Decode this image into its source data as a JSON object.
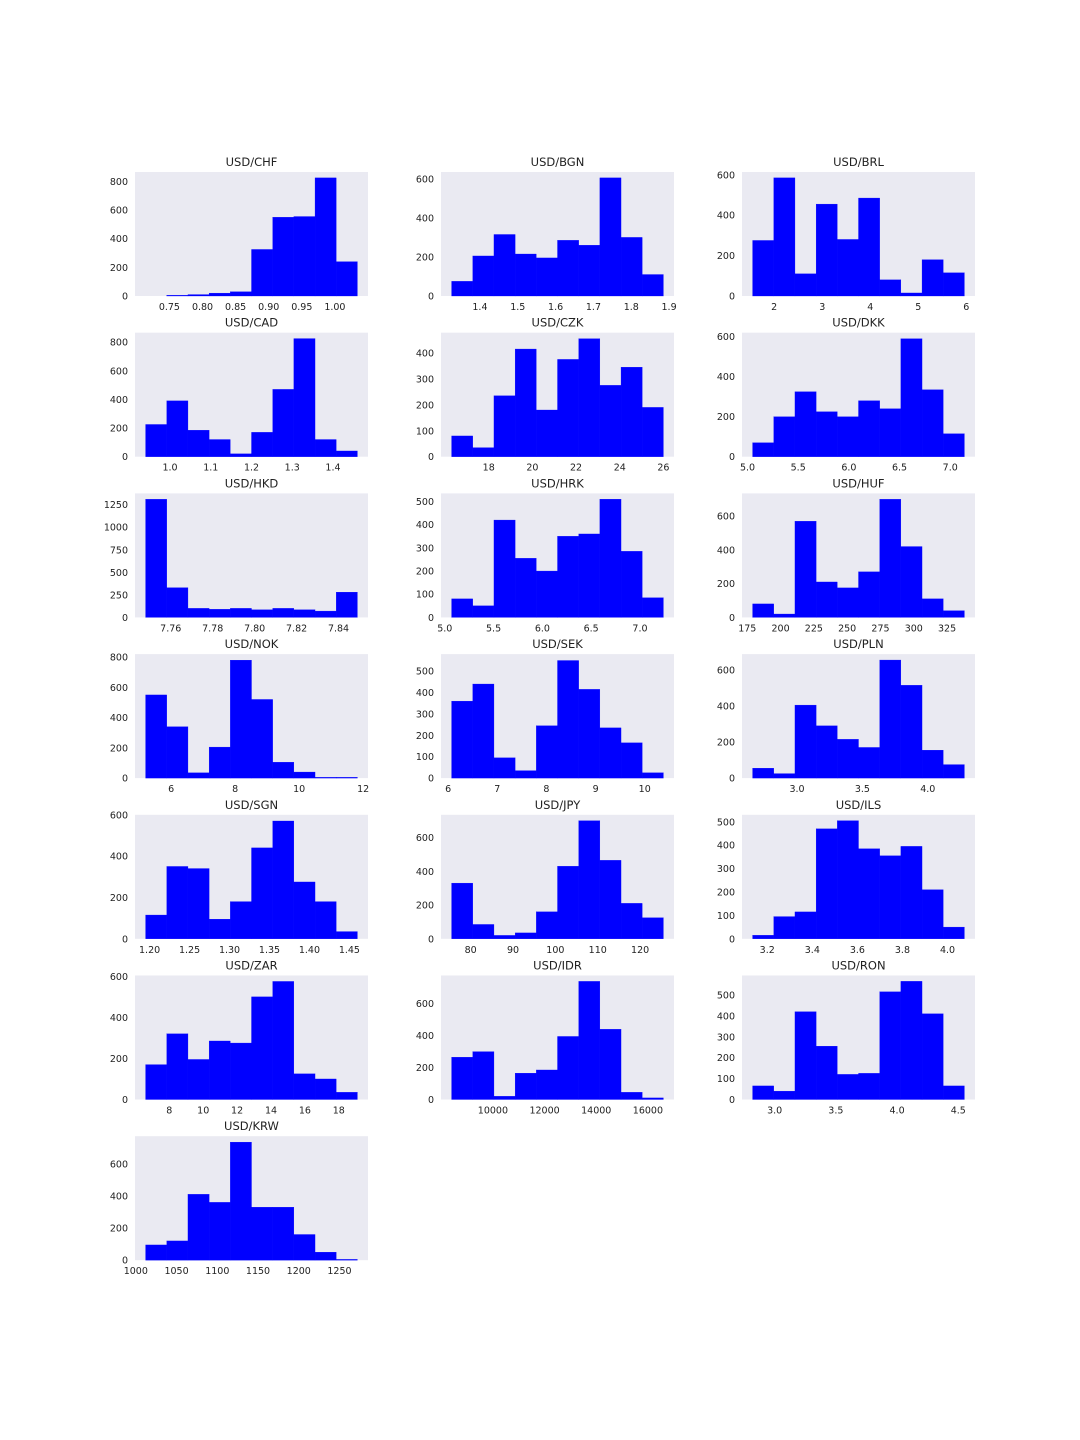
{
  "figure": {
    "bar_color": "#0000ff",
    "plot_bg": "#eaeaf2"
  },
  "chart_data": [
    {
      "type": "bar",
      "title": "USD/CHF",
      "bin_edges": [
        0.714,
        0.746,
        0.778,
        0.81,
        0.842,
        0.874,
        0.906,
        0.938,
        0.97,
        1.002,
        1.034
      ],
      "values": [
        0,
        5,
        10,
        20,
        30,
        325,
        550,
        555,
        825,
        240
      ],
      "xticks": [
        0.75,
        0.8,
        0.85,
        0.9,
        0.95,
        1.0
      ],
      "xticklabels": [
        "0.75",
        "0.80",
        "0.85",
        "0.90",
        "0.95",
        "1.00"
      ],
      "yticks": [
        0,
        200,
        400,
        600,
        800
      ],
      "yticklabels": [
        "0",
        "200",
        "400",
        "600",
        "800"
      ],
      "ylim": [
        0,
        866
      ]
    },
    {
      "type": "bar",
      "title": "USD/BGN",
      "bin_edges": [
        1.325,
        1.381,
        1.437,
        1.493,
        1.549,
        1.605,
        1.661,
        1.717,
        1.773,
        1.829,
        1.885
      ],
      "values": [
        75,
        205,
        315,
        215,
        195,
        285,
        260,
        605,
        300,
        110
      ],
      "xticks": [
        1.4,
        1.5,
        1.6,
        1.7,
        1.8,
        1.9
      ],
      "xticklabels": [
        "1.4",
        "1.5",
        "1.6",
        "1.7",
        "1.8",
        "1.9"
      ],
      "yticks": [
        0,
        200,
        400,
        600
      ],
      "yticklabels": [
        "0",
        "200",
        "400",
        "600"
      ],
      "ylim": [
        0,
        635
      ]
    },
    {
      "type": "bar",
      "title": "USD/BRL",
      "bin_edges": [
        1.55,
        1.991,
        2.432,
        2.873,
        3.314,
        3.755,
        4.196,
        4.637,
        5.078,
        5.519,
        5.96
      ],
      "values": [
        275,
        585,
        110,
        455,
        280,
        485,
        80,
        15,
        180,
        115
      ],
      "xticks": [
        2,
        3,
        4,
        5,
        6
      ],
      "xticklabels": [
        "2",
        "3",
        "4",
        "5",
        "6"
      ],
      "yticks": [
        0,
        200,
        400,
        600
      ],
      "yticklabels": [
        "0",
        "200",
        "400",
        "600"
      ],
      "ylim": [
        0,
        614
      ]
    },
    {
      "type": "bar",
      "title": "USD/CAD",
      "bin_edges": [
        0.94,
        0.992,
        1.044,
        1.096,
        1.148,
        1.2,
        1.252,
        1.304,
        1.356,
        1.408,
        1.46
      ],
      "values": [
        225,
        390,
        185,
        120,
        20,
        170,
        470,
        825,
        120,
        40
      ],
      "xticks": [
        1.0,
        1.1,
        1.2,
        1.3,
        1.4
      ],
      "xticklabels": [
        "1.0",
        "1.1",
        "1.2",
        "1.3",
        "1.4"
      ],
      "yticks": [
        0,
        200,
        400,
        600,
        800
      ],
      "yticklabels": [
        "0",
        "200",
        "400",
        "600",
        "800"
      ],
      "ylim": [
        0,
        866
      ]
    },
    {
      "type": "bar",
      "title": "USD/CZK",
      "bin_edges": [
        16.3,
        17.27,
        18.24,
        19.21,
        20.18,
        21.15,
        22.12,
        23.09,
        24.06,
        25.03,
        26.0
      ],
      "values": [
        80,
        35,
        235,
        415,
        180,
        375,
        455,
        275,
        345,
        190
      ],
      "xticks": [
        18,
        20,
        22,
        24,
        26
      ],
      "xticklabels": [
        "18",
        "20",
        "22",
        "24",
        "26"
      ],
      "yticks": [
        0,
        100,
        200,
        300,
        400
      ],
      "yticklabels": [
        "0",
        "100",
        "200",
        "300",
        "400"
      ],
      "ylim": [
        0,
        478
      ]
    },
    {
      "type": "bar",
      "title": "USD/DKK",
      "bin_edges": [
        5.05,
        5.259,
        5.468,
        5.677,
        5.886,
        6.095,
        6.304,
        6.513,
        6.722,
        6.931,
        7.14
      ],
      "values": [
        70,
        200,
        325,
        225,
        200,
        280,
        240,
        590,
        335,
        115
      ],
      "xticks": [
        5.0,
        5.5,
        6.0,
        6.5,
        7.0
      ],
      "xticklabels": [
        "5.0",
        "5.5",
        "6.0",
        "6.5",
        "7.0"
      ],
      "yticks": [
        0,
        200,
        400,
        600
      ],
      "yticklabels": [
        "0",
        "200",
        "400",
        "600"
      ],
      "ylim": [
        0,
        620
      ]
    },
    {
      "type": "bar",
      "title": "USD/HKD",
      "bin_edges": [
        7.748,
        7.7581,
        7.7682,
        7.7783,
        7.7884,
        7.7985,
        7.8086,
        7.8187,
        7.8288,
        7.8389,
        7.849
      ],
      "values": [
        1310,
        330,
        100,
        90,
        100,
        85,
        100,
        85,
        70,
        280
      ],
      "xticks": [
        7.76,
        7.78,
        7.8,
        7.82,
        7.84
      ],
      "xticklabels": [
        "7.76",
        "7.78",
        "7.80",
        "7.82",
        "7.84"
      ],
      "yticks": [
        0,
        250,
        500,
        750,
        1000,
        1250
      ],
      "yticklabels": [
        "0",
        "250",
        "500",
        "750",
        "1000",
        "1250"
      ],
      "ylim": [
        0,
        1375
      ]
    },
    {
      "type": "bar",
      "title": "USD/HRK",
      "bin_edges": [
        5.07,
        5.287,
        5.504,
        5.721,
        5.938,
        6.155,
        6.372,
        6.589,
        6.806,
        7.023,
        7.24
      ],
      "values": [
        80,
        50,
        420,
        255,
        200,
        350,
        360,
        510,
        285,
        85
      ],
      "xticks": [
        5.0,
        5.5,
        6.0,
        6.5,
        7.0
      ],
      "xticklabels": [
        "5.0",
        "5.5",
        "6.0",
        "6.5",
        "7.0"
      ],
      "yticks": [
        0,
        100,
        200,
        300,
        400,
        500
      ],
      "yticklabels": [
        "0",
        "100",
        "200",
        "300",
        "400",
        "500"
      ],
      "ylim": [
        0,
        535
      ]
    },
    {
      "type": "bar",
      "title": "USD/HUF",
      "bin_edges": [
        179,
        194.9,
        210.8,
        226.7,
        242.6,
        258.5,
        274.4,
        290.3,
        306.2,
        322.1,
        338
      ],
      "values": [
        80,
        20,
        570,
        210,
        175,
        270,
        700,
        420,
        110,
        40
      ],
      "xticks": [
        175,
        200,
        225,
        250,
        275,
        300,
        325
      ],
      "xticklabels": [
        "175",
        "200",
        "225",
        "250",
        "275",
        "300",
        "325"
      ],
      "yticks": [
        0,
        200,
        400,
        600
      ],
      "yticklabels": [
        "0",
        "200",
        "400",
        "600"
      ],
      "ylim": [
        0,
        735
      ]
    },
    {
      "type": "bar",
      "title": "USD/NOK",
      "bin_edges": [
        5.2,
        5.862,
        6.524,
        7.186,
        7.848,
        8.51,
        9.172,
        9.834,
        10.496,
        11.158,
        11.82
      ],
      "values": [
        550,
        340,
        35,
        205,
        780,
        520,
        105,
        40,
        5,
        5
      ],
      "xticks": [
        6,
        8,
        10,
        12
      ],
      "xticklabels": [
        "6",
        "8",
        "10",
        "12"
      ],
      "yticks": [
        0,
        200,
        400,
        600,
        800
      ],
      "yticklabels": [
        "0",
        "200",
        "400",
        "600",
        "800"
      ],
      "ylim": [
        0,
        820
      ]
    },
    {
      "type": "bar",
      "title": "USD/SEK",
      "bin_edges": [
        6.07,
        6.501,
        6.932,
        7.363,
        7.794,
        8.225,
        8.656,
        9.087,
        9.518,
        9.949,
        10.38
      ],
      "values": [
        360,
        440,
        95,
        35,
        245,
        550,
        415,
        235,
        165,
        25
      ],
      "xticks": [
        6,
        7,
        8,
        9,
        10
      ],
      "xticklabels": [
        "6",
        "7",
        "8",
        "9",
        "10"
      ],
      "yticks": [
        0,
        100,
        200,
        300,
        400,
        500
      ],
      "yticklabels": [
        "0",
        "100",
        "200",
        "300",
        "400",
        "500"
      ],
      "ylim": [
        0,
        580
      ]
    },
    {
      "type": "bar",
      "title": "USD/PLN",
      "bin_edges": [
        2.66,
        2.822,
        2.984,
        3.146,
        3.308,
        3.47,
        3.632,
        3.794,
        3.956,
        4.118,
        4.28
      ],
      "values": [
        55,
        25,
        405,
        290,
        215,
        170,
        655,
        515,
        155,
        75
      ],
      "xticks": [
        3.0,
        3.5,
        4.0
      ],
      "xticklabels": [
        "3.0",
        "3.5",
        "4.0"
      ],
      "yticks": [
        0,
        200,
        400,
        600
      ],
      "yticklabels": [
        "0",
        "200",
        "400",
        "600"
      ],
      "ylim": [
        0,
        688
      ]
    },
    {
      "type": "bar",
      "title": "USD/SGN",
      "bin_edges": [
        1.195,
        1.2215,
        1.248,
        1.2745,
        1.301,
        1.3275,
        1.354,
        1.3805,
        1.407,
        1.4335,
        1.46
      ],
      "values": [
        115,
        350,
        340,
        95,
        180,
        440,
        570,
        275,
        180,
        35
      ],
      "xticks": [
        1.2,
        1.25,
        1.3,
        1.35,
        1.4,
        1.45
      ],
      "xticklabels": [
        "1.20",
        "1.25",
        "1.30",
        "1.35",
        "1.40",
        "1.45"
      ],
      "yticks": [
        0,
        200,
        400,
        600
      ],
      "yticklabels": [
        "0",
        "200",
        "400",
        "600"
      ],
      "ylim": [
        0,
        600
      ]
    },
    {
      "type": "bar",
      "title": "USD/JPY",
      "bin_edges": [
        75.5,
        80.5,
        85.5,
        90.5,
        95.5,
        100.5,
        105.5,
        110.5,
        115.5,
        120.5,
        125.5
      ],
      "values": [
        330,
        85,
        20,
        35,
        160,
        430,
        700,
        465,
        210,
        125
      ],
      "xticks": [
        80,
        90,
        100,
        110,
        120
      ],
      "xticklabels": [
        "80",
        "90",
        "100",
        "110",
        "120"
      ],
      "yticks": [
        0,
        200,
        400,
        600
      ],
      "yticklabels": [
        "0",
        "200",
        "400",
        "600"
      ],
      "ylim": [
        0,
        735
      ]
    },
    {
      "type": "bar",
      "title": "USD/ILS",
      "bin_edges": [
        3.135,
        3.229,
        3.323,
        3.417,
        3.511,
        3.605,
        3.699,
        3.793,
        3.887,
        3.981,
        4.075
      ],
      "values": [
        15,
        95,
        115,
        470,
        505,
        385,
        355,
        395,
        210,
        50
      ],
      "xticks": [
        3.2,
        3.4,
        3.6,
        3.8,
        4.0
      ],
      "xticklabels": [
        "3.2",
        "3.4",
        "3.6",
        "3.8",
        "4.0"
      ],
      "yticks": [
        0,
        100,
        200,
        300,
        400,
        500
      ],
      "yticklabels": [
        "0",
        "100",
        "200",
        "300",
        "400",
        "500"
      ],
      "ylim": [
        0,
        530
      ]
    },
    {
      "type": "bar",
      "title": "USD/ZAR",
      "bin_edges": [
        6.6,
        7.85,
        9.1,
        10.35,
        11.6,
        12.85,
        14.1,
        15.35,
        16.6,
        17.85,
        19.1
      ],
      "values": [
        170,
        320,
        195,
        285,
        275,
        500,
        575,
        125,
        100,
        35
      ],
      "xticks": [
        8,
        10,
        12,
        14,
        16,
        18
      ],
      "xticklabels": [
        "8",
        "10",
        "12",
        "14",
        "16",
        "18"
      ],
      "yticks": [
        0,
        200,
        400,
        600
      ],
      "yticklabels": [
        "0",
        "200",
        "400",
        "600"
      ],
      "ylim": [
        0,
        604
      ]
    },
    {
      "type": "bar",
      "title": "USD/IDR",
      "bin_edges": [
        8400,
        9220,
        10040,
        10860,
        11680,
        12500,
        13320,
        14140,
        14960,
        15780,
        16600
      ],
      "values": [
        265,
        300,
        20,
        165,
        185,
        395,
        740,
        440,
        45,
        10
      ],
      "xticks": [
        10000,
        12000,
        14000,
        16000
      ],
      "xticklabels": [
        "10000",
        "12000",
        "14000",
        "16000"
      ],
      "yticks": [
        0,
        200,
        400,
        600
      ],
      "yticklabels": [
        "0",
        "200",
        "400",
        "600"
      ],
      "ylim": [
        0,
        777
      ]
    },
    {
      "type": "bar",
      "title": "USD/RON",
      "bin_edges": [
        2.82,
        2.993,
        3.166,
        3.339,
        3.512,
        3.685,
        3.858,
        4.031,
        4.204,
        4.377,
        4.55
      ],
      "values": [
        65,
        40,
        420,
        255,
        120,
        125,
        515,
        565,
        410,
        65
      ],
      "xticks": [
        3.0,
        3.5,
        4.0,
        4.5
      ],
      "xticklabels": [
        "3.0",
        "3.5",
        "4.0",
        "4.5"
      ],
      "yticks": [
        0,
        100,
        200,
        300,
        400,
        500
      ],
      "yticklabels": [
        "0",
        "100",
        "200",
        "300",
        "400",
        "500"
      ],
      "ylim": [
        0,
        593
      ]
    },
    {
      "type": "bar",
      "title": "USD/KRW",
      "bin_edges": [
        1012,
        1038,
        1064,
        1090,
        1116,
        1142,
        1168,
        1194,
        1220,
        1246,
        1272
      ],
      "values": [
        95,
        120,
        410,
        360,
        735,
        330,
        330,
        160,
        50,
        5
      ],
      "xticks": [
        1000,
        1050,
        1100,
        1150,
        1200,
        1250
      ],
      "xticklabels": [
        "1000",
        "1050",
        "1100",
        "1150",
        "1200",
        "1250"
      ],
      "yticks": [
        0,
        200,
        400,
        600
      ],
      "yticklabels": [
        "0",
        "200",
        "400",
        "600"
      ],
      "ylim": [
        0,
        772
      ]
    }
  ]
}
